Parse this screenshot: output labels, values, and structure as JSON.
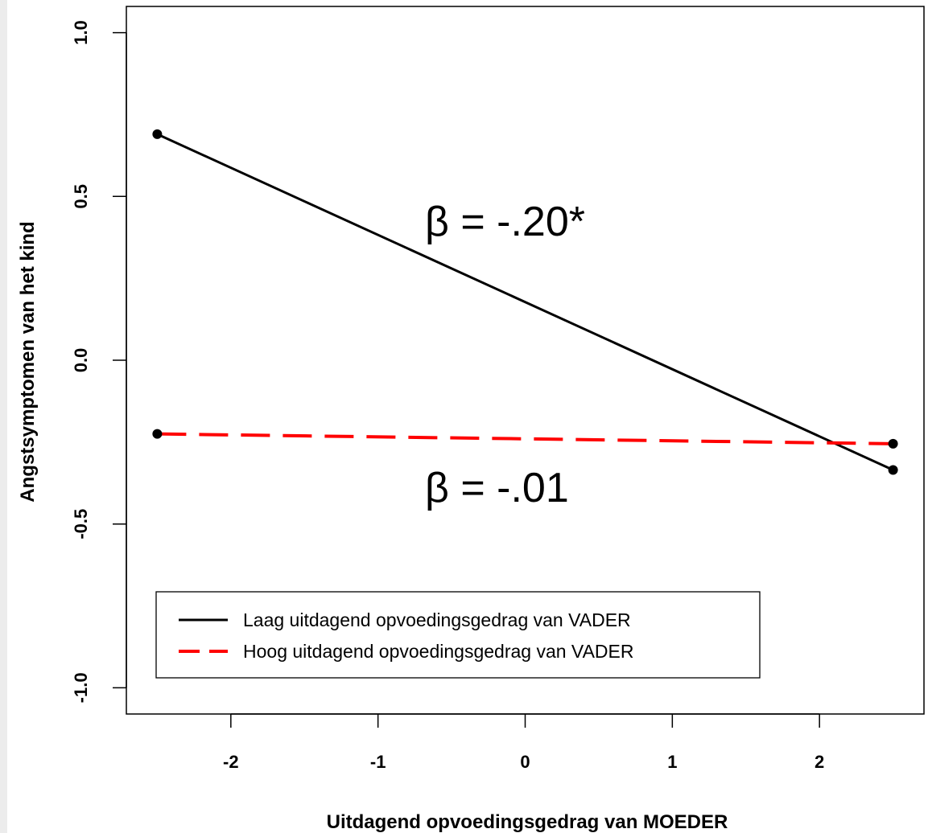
{
  "chart_data": {
    "type": "line",
    "title": "",
    "xlabel": "Uitdagend opvoedingsgedrag van MOEDER",
    "ylabel": "Angstsymptomen van het kind",
    "xlim": [
      -2.71,
      2.71
    ],
    "ylim": [
      -1.08,
      1.08
    ],
    "x_ticks": [
      -2,
      -1,
      0,
      1,
      2
    ],
    "x_tick_labels": [
      "-2",
      "-1",
      "0",
      "1",
      "2"
    ],
    "y_ticks": [
      -1.0,
      -0.5,
      0.0,
      0.5,
      1.0
    ],
    "y_tick_labels": [
      "-1.0",
      "-0.5",
      "0.0",
      "0.5",
      "1.0"
    ],
    "grid": false,
    "legend_position": "bottom-left",
    "series": [
      {
        "name": "Laag uitdagend opvoedingsgedrag van VADER",
        "x": [
          -2.5,
          2.5
        ],
        "y": [
          0.69,
          -0.335
        ],
        "color": "#000000",
        "dash": "solid",
        "annotation": "β = -.20*"
      },
      {
        "name": "Hoog uitdagend opvoedingsgedrag van VADER",
        "x": [
          -2.5,
          2.5
        ],
        "y": [
          -0.225,
          -0.255
        ],
        "color": "#ff0000",
        "dash": "dashed",
        "annotation": "β = -.01"
      }
    ]
  }
}
